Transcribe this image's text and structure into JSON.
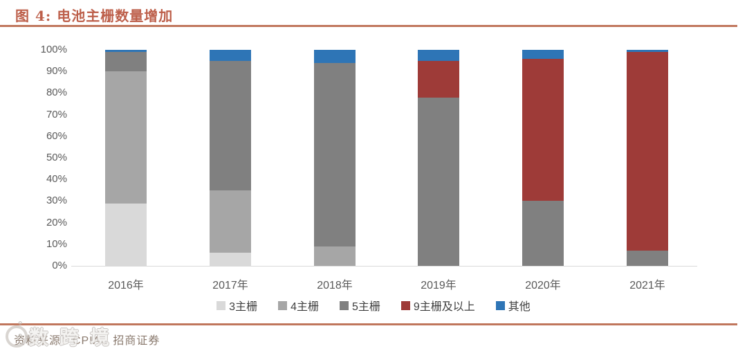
{
  "header": {
    "title": "图 4:  电池主栅数量增加",
    "accent_color": "#bd5f4a",
    "rule_color": "#c0765c"
  },
  "chart_data": {
    "type": "bar",
    "stacked": true,
    "percent": true,
    "title": "电池主栅数量增加",
    "categories": [
      "2016年",
      "2017年",
      "2018年",
      "2019年",
      "2020年",
      "2021年"
    ],
    "series": [
      {
        "name": "3主栅",
        "color": "#d9d9d9",
        "values": [
          29,
          6,
          0,
          0,
          0,
          0
        ]
      },
      {
        "name": "4主栅",
        "color": "#a6a6a6",
        "values": [
          61,
          29,
          9,
          0,
          0,
          0
        ]
      },
      {
        "name": "5主栅",
        "color": "#808080",
        "values": [
          9,
          60,
          85,
          78,
          30,
          7
        ]
      },
      {
        "name": "9主栅及以上",
        "color": "#9e3b38",
        "values": [
          0,
          0,
          0,
          17,
          66,
          92
        ]
      },
      {
        "name": "其他",
        "color": "#2e75b6",
        "values": [
          1,
          5,
          6,
          5,
          4,
          1
        ]
      }
    ],
    "ylabel": "",
    "xlabel": "",
    "ylim": [
      0,
      100
    ],
    "yticks": [
      "0%",
      "10%",
      "20%",
      "30%",
      "40%",
      "50%",
      "60%",
      "70%",
      "80%",
      "90%",
      "100%"
    ],
    "grid": false,
    "legend_position": "bottom",
    "axis_label_color": "#595959",
    "legend_label_color": "#3f3f3f"
  },
  "footer": {
    "source": "资料来源：CPIA、招商证券",
    "watermark": "数跨境"
  }
}
